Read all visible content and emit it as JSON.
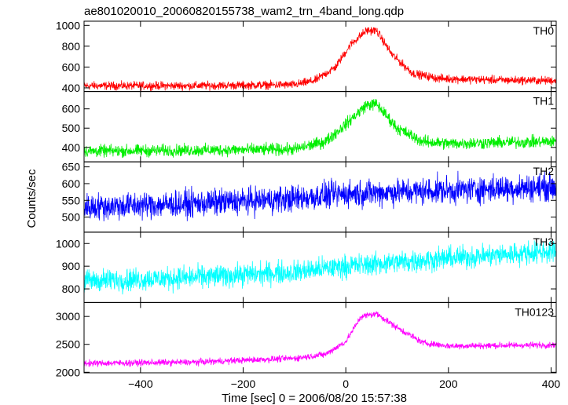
{
  "title": "ae801020010_20060820155738_wam2_trn_4band_long.qdp",
  "ylabel": "Counts/sec",
  "xlabel": "Time [sec] 0 = 2006/08/20 15:57:38",
  "x_ticks": [
    -400,
    -200,
    0,
    200,
    400
  ],
  "chart_data": [
    {
      "type": "line",
      "name": "TH0",
      "color": "#ff0000",
      "xlim": [
        -510,
        410
      ],
      "ylim": [
        365,
        1040
      ],
      "yticks": [
        400,
        600,
        800,
        1000
      ],
      "noise": 28,
      "profile": [
        [
          -510,
          420
        ],
        [
          -300,
          420
        ],
        [
          -100,
          430
        ],
        [
          -60,
          470
        ],
        [
          -20,
          600
        ],
        [
          10,
          820
        ],
        [
          40,
          950
        ],
        [
          60,
          950
        ],
        [
          90,
          720
        ],
        [
          130,
          540
        ],
        [
          180,
          490
        ],
        [
          300,
          475
        ],
        [
          400,
          470
        ]
      ]
    },
    {
      "type": "line",
      "name": "TH1",
      "color": "#00ee00",
      "xlim": [
        -510,
        410
      ],
      "ylim": [
        325,
        690
      ],
      "yticks": [
        400,
        500,
        600
      ],
      "noise": 22,
      "profile": [
        [
          -510,
          380
        ],
        [
          -300,
          385
        ],
        [
          -100,
          390
        ],
        [
          -40,
          430
        ],
        [
          0,
          520
        ],
        [
          40,
          620
        ],
        [
          60,
          625
        ],
        [
          100,
          500
        ],
        [
          150,
          430
        ],
        [
          200,
          420
        ],
        [
          300,
          425
        ],
        [
          400,
          430
        ]
      ]
    },
    {
      "type": "line",
      "name": "TH2",
      "color": "#0000ff",
      "xlim": [
        -510,
        410
      ],
      "ylim": [
        455,
        665
      ],
      "yticks": [
        500,
        550,
        600,
        650
      ],
      "noise": 28,
      "profile": [
        [
          -510,
          530
        ],
        [
          -300,
          540
        ],
        [
          -100,
          555
        ],
        [
          0,
          570
        ],
        [
          200,
          580
        ],
        [
          400,
          590
        ]
      ]
    },
    {
      "type": "line",
      "name": "TH3",
      "color": "#00ffff",
      "xlim": [
        -510,
        410
      ],
      "ylim": [
        740,
        1050
      ],
      "yticks": [
        800,
        900,
        1000
      ],
      "noise": 35,
      "profile": [
        [
          -510,
          835
        ],
        [
          -300,
          850
        ],
        [
          -100,
          875
        ],
        [
          0,
          900
        ],
        [
          200,
          935
        ],
        [
          400,
          965
        ]
      ]
    },
    {
      "type": "line",
      "name": "TH0123",
      "color": "#ff00ff",
      "xlim": [
        -510,
        410
      ],
      "ylim": [
        1990,
        3250
      ],
      "yticks": [
        2000,
        2500,
        3000
      ],
      "noise": 40,
      "profile": [
        [
          -510,
          2160
        ],
        [
          -300,
          2180
        ],
        [
          -100,
          2250
        ],
        [
          -40,
          2320
        ],
        [
          0,
          2550
        ],
        [
          30,
          3000
        ],
        [
          60,
          3050
        ],
        [
          100,
          2800
        ],
        [
          150,
          2530
        ],
        [
          200,
          2470
        ],
        [
          300,
          2480
        ],
        [
          400,
          2490
        ]
      ]
    }
  ]
}
